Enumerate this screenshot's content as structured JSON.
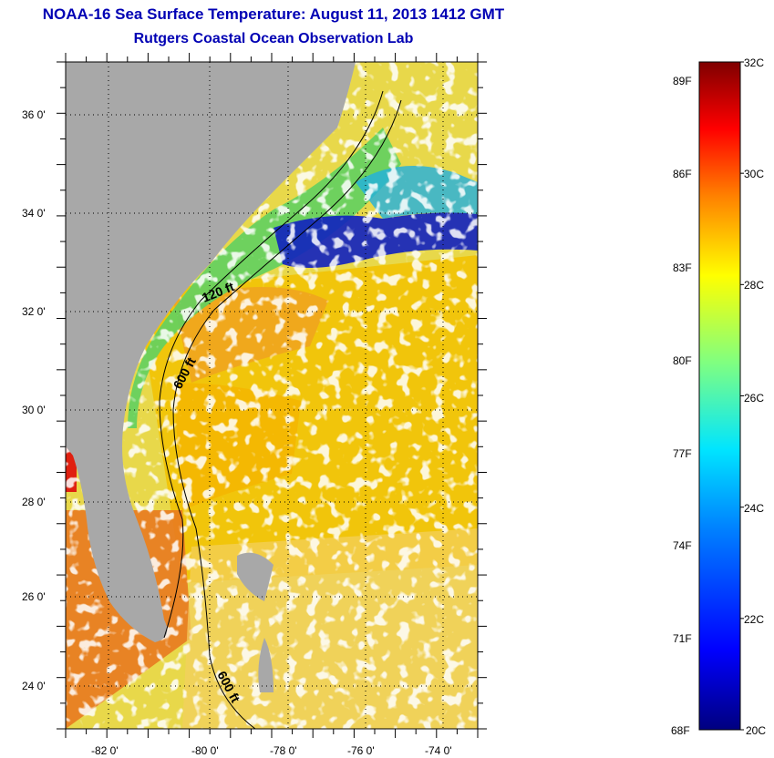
{
  "title": {
    "line1": "NOAA-16 Sea Surface Temperature:  August 11, 2013 1412 GMT",
    "line2": "Rutgers Coastal Ocean Observation Lab"
  },
  "map": {
    "lon_range": [
      -83,
      -72.5
    ],
    "lat_range": [
      23,
      37
    ],
    "x_ticks": [
      "-82 0'",
      "-80 0'",
      "-78 0'",
      "-76 0'",
      "-74 0'"
    ],
    "y_ticks": [
      "36 0'",
      "34 0'",
      "32 0'",
      "30 0'",
      "28 0'",
      "26 0'",
      "24 0'"
    ],
    "contour_labels": [
      "120 ft",
      "600 ft",
      "600 ft"
    ],
    "land_color": "#a8a8a8",
    "cloud_color": "#ffffff"
  },
  "colorbar": {
    "range_c": [
      20,
      32
    ],
    "celsius_labels": [
      "32C",
      "30C",
      "28C",
      "26C",
      "24C",
      "22C",
      "20C"
    ],
    "fahrenheit_labels": [
      "89F",
      "86F",
      "83F",
      "80F",
      "77F",
      "74F",
      "71F",
      "68F"
    ],
    "colormap": [
      "#00007f",
      "#0000ff",
      "#007fff",
      "#00ffff",
      "#7fff7f",
      "#ffff00",
      "#ff7f00",
      "#ff0000",
      "#7f0000"
    ]
  }
}
